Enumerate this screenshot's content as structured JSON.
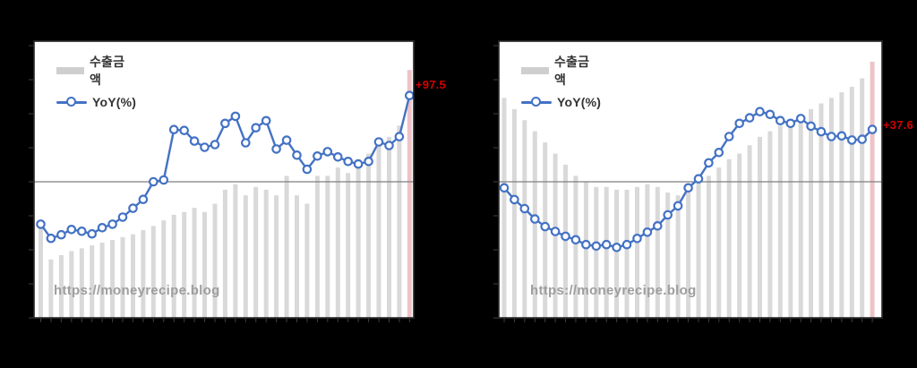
{
  "background": "#000000",
  "watermark_text": "https://moneyrecipe.blog",
  "legend": {
    "bar_label": "수출금액",
    "line_label": "YoY(%)"
  },
  "annotations": {
    "left": "+97.5",
    "right": "+37.6"
  },
  "colors": {
    "bar": "#d9d9d9",
    "bar_highlight": "#edc3c7",
    "line": "#4472c4",
    "marker_fill": "#ffffff",
    "zero_line": "#7f7f7f",
    "panel_bg": "#ffffff",
    "panel_border": "#242424",
    "tick": "#3f3f3f",
    "annotation": "#d40000",
    "legend_text": "#333333",
    "watermark": "#9e9e9e"
  },
  "chart_data": [
    {
      "name": "left-export-chart",
      "type": "combo",
      "legend_position": "top-left",
      "grid": "zero-line-only",
      "axis_tick_labels_visible": false,
      "n_points": 37,
      "highlight_last_bar": true,
      "last_point_label": "+97.5",
      "line_ylim": [
        -155,
        160
      ],
      "zero_line_style": "solid",
      "series": [
        {
          "name": "수출금액",
          "type": "bar",
          "unit": "percent_of_plot_height",
          "values": [
            33,
            21,
            22.5,
            24,
            25,
            26,
            27,
            28,
            29,
            30,
            31.5,
            33,
            35,
            37,
            38,
            39.5,
            38,
            41,
            46,
            48,
            44,
            47,
            46,
            44,
            51,
            44,
            41,
            51,
            51,
            54,
            52,
            57,
            59,
            63,
            65,
            69,
            89
          ]
        },
        {
          "name": "YoY(%)",
          "type": "line",
          "unit": "percent",
          "values": [
            -48,
            -64,
            -60,
            -54,
            -56,
            -59,
            -52,
            -48,
            -40,
            -30,
            -20,
            0,
            2,
            59,
            58,
            46,
            39,
            42,
            66,
            74,
            44,
            61,
            69,
            37,
            47,
            30,
            14,
            29,
            34,
            28,
            23,
            20,
            23,
            45,
            41,
            51,
            97.5
          ]
        }
      ]
    },
    {
      "name": "right-export-chart",
      "type": "combo",
      "legend_position": "top-left",
      "grid": "zero-line-only",
      "axis_tick_labels_visible": false,
      "n_points": 37,
      "highlight_last_bar": true,
      "last_point_label": "+37.6",
      "line_ylim": [
        -99,
        102
      ],
      "zero_line_style": "solid",
      "series": [
        {
          "name": "수출금액",
          "type": "bar",
          "unit": "percent_of_plot_height",
          "values": [
            79,
            75,
            71,
            67,
            63,
            59,
            55,
            51,
            49,
            47,
            47,
            46,
            46,
            47,
            48,
            47,
            45,
            44,
            47,
            49,
            51,
            54,
            57,
            59,
            62,
            65,
            67,
            69,
            71,
            73,
            75,
            77,
            79,
            81,
            83,
            86,
            92
          ]
        },
        {
          "name": "YoY(%)",
          "type": "line",
          "unit": "percent",
          "values": [
            -4.5,
            -13,
            -19.5,
            -27,
            -32.5,
            -36,
            -39.5,
            -42,
            -45.5,
            -46.5,
            -45.5,
            -47.5,
            -45.5,
            -41,
            -36.5,
            -32,
            -24,
            -17.5,
            -4.5,
            2,
            13.5,
            21,
            32.5,
            42,
            46,
            50.5,
            48.5,
            44,
            42,
            45.5,
            40,
            36,
            32.5,
            33,
            30,
            30.5,
            37.6
          ]
        }
      ]
    }
  ]
}
